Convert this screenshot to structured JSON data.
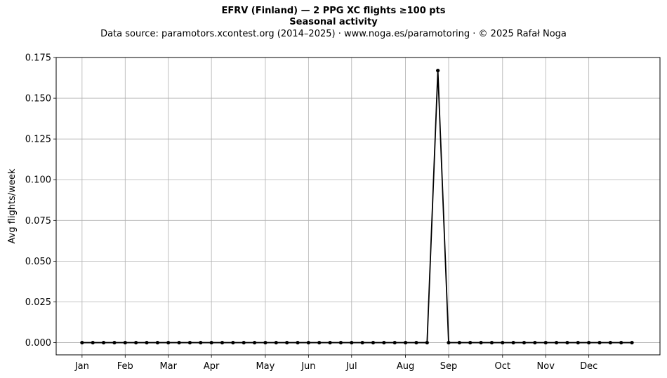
{
  "chart_data": {
    "type": "line",
    "title": "EFRV (Finland)  —  2 PPG XC flights ≥100 pts",
    "subtitle": "Seasonal activity",
    "source_note": "Data source: paramotors.xcontest.org (2014–2025)  ·  www.noga.es/paramotoring  ·  © 2025 Rafał Noga",
    "xlabel": "",
    "ylabel": "Avg flights/week",
    "ylim": [
      -0.0075,
      0.175
    ],
    "xlim": [
      -2.4,
      53.6
    ],
    "yticks": [
      0.0,
      0.025,
      0.05,
      0.075,
      0.1,
      0.125,
      0.15,
      0.175
    ],
    "ytick_labels": [
      "0.000",
      "0.025",
      "0.050",
      "0.075",
      "0.100",
      "0.125",
      "0.150",
      "0.175"
    ],
    "xticks": [
      0,
      4,
      8,
      12,
      17,
      21,
      25,
      30,
      34,
      39,
      43,
      47
    ],
    "xtick_labels": [
      "Jan",
      "Feb",
      "Mar",
      "Apr",
      "May",
      "Jun",
      "Jul",
      "Aug",
      "Sep",
      "Oct",
      "Nov",
      "Dec"
    ],
    "grid": true,
    "line_color": "#000000",
    "series": [
      {
        "x": [
          0,
          1,
          2,
          3,
          4,
          5,
          6,
          7,
          8,
          9,
          10,
          11,
          12,
          13,
          14,
          15,
          16,
          17,
          18,
          19,
          20,
          21,
          22,
          23,
          24,
          25,
          26,
          27,
          28,
          29,
          30,
          31,
          32,
          33,
          34,
          35,
          36,
          37,
          38,
          39,
          40,
          41,
          42,
          43,
          44,
          45,
          46,
          47,
          48,
          49,
          50,
          51
        ],
        "values": [
          0,
          0,
          0,
          0,
          0,
          0,
          0,
          0,
          0,
          0,
          0,
          0,
          0,
          0,
          0,
          0,
          0,
          0,
          0,
          0,
          0,
          0,
          0,
          0,
          0,
          0,
          0,
          0,
          0,
          0,
          0,
          0,
          0,
          0.167,
          0,
          0,
          0,
          0,
          0,
          0,
          0,
          0,
          0,
          0,
          0,
          0,
          0,
          0,
          0,
          0,
          0,
          0
        ]
      }
    ]
  }
}
